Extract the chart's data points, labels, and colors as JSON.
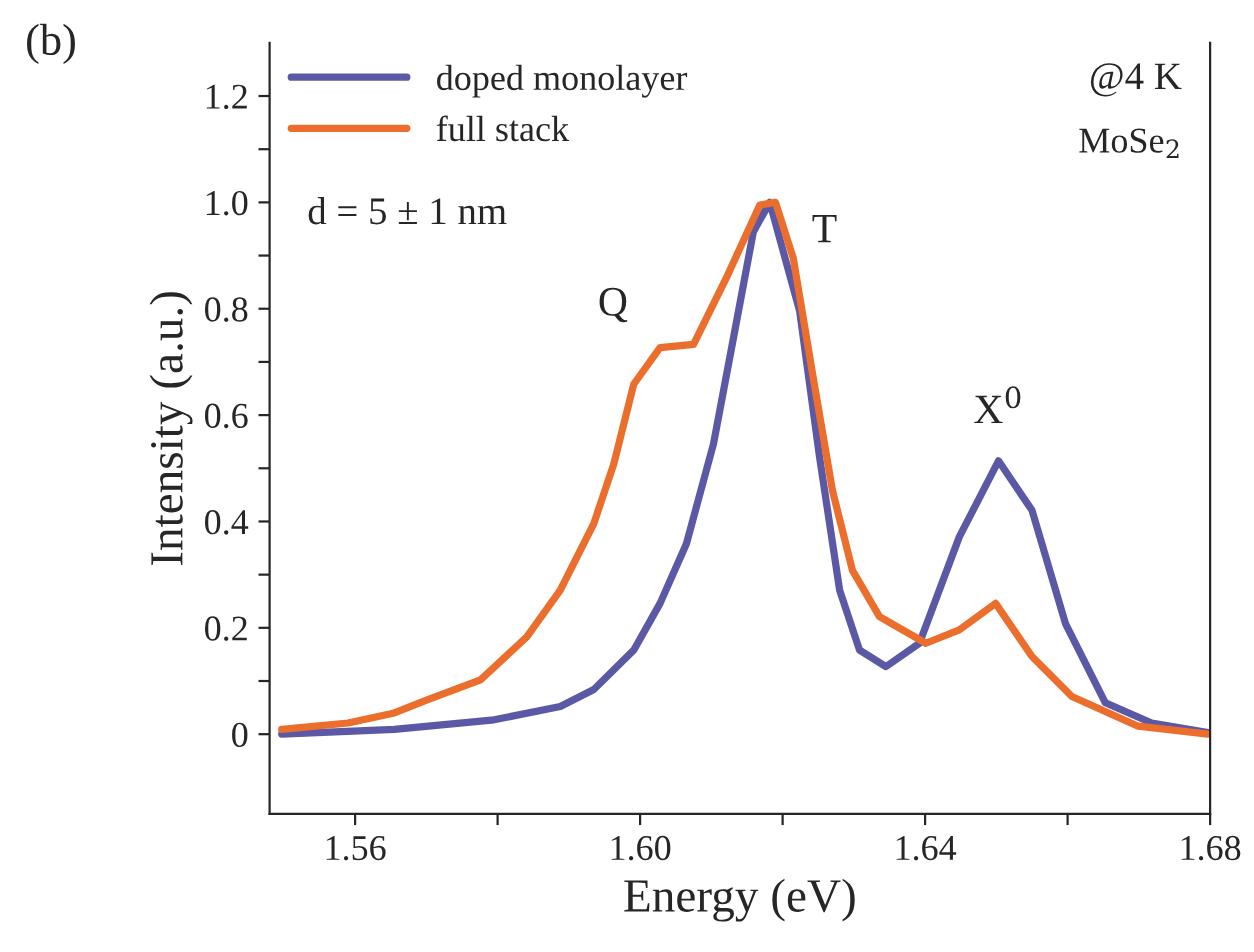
{
  "chart_data": {
    "type": "line",
    "xlabel": "Energy (eV)",
    "ylabel": "Intensity (a.u.)",
    "xlim": [
      1.548,
      1.68
    ],
    "ylim": [
      -0.15,
      1.3
    ],
    "xticks": [
      1.56,
      {
        "value": 1.58,
        "label": null
      },
      {
        "value": 1.6,
        "label": "1.60"
      },
      {
        "value": 1.62,
        "label": null
      },
      1.64,
      {
        "value": 1.66,
        "label": null
      },
      1.68
    ],
    "yticks": [
      0,
      {
        "value": 0.1,
        "label": null
      },
      0.2,
      {
        "value": 0.3,
        "label": null
      },
      0.4,
      {
        "value": 0.5,
        "label": null
      },
      0.6,
      {
        "value": 0.7,
        "label": null
      },
      0.8,
      {
        "value": 0.9,
        "label": null
      },
      {
        "value": 1.0,
        "label": "1.0"
      },
      {
        "value": 1.1,
        "label": null
      },
      1.2
    ],
    "grid": false,
    "legend": "top left",
    "marker": "none",
    "line_style": "solid",
    "series": [
      {
        "name": "doped monolayer",
        "color": "#5b58a6",
        "x": [
          1.5497,
          1.5655,
          1.5795,
          1.5888,
          1.5935,
          1.5991,
          1.6028,
          1.6065,
          1.6103,
          1.6131,
          1.6159,
          1.6182,
          1.6224,
          1.6252,
          1.628,
          1.6308,
          1.6345,
          1.6392,
          1.6448,
          1.6503,
          1.655,
          1.6597,
          1.6653,
          1.6718,
          1.6797
        ],
        "values": [
          0.0,
          0.009,
          0.027,
          0.052,
          0.084,
          0.158,
          0.246,
          0.358,
          0.546,
          0.745,
          0.945,
          1.0,
          0.795,
          0.52,
          0.271,
          0.158,
          0.127,
          0.171,
          0.371,
          0.514,
          0.421,
          0.208,
          0.059,
          0.021,
          0.003
        ]
      },
      {
        "name": "full stack",
        "color": "#ec6e2c",
        "x": [
          1.5497,
          1.559,
          1.5655,
          1.5702,
          1.5776,
          1.5841,
          1.5888,
          1.5935,
          1.5963,
          1.5991,
          1.6028,
          1.6075,
          1.6121,
          1.6168,
          1.619,
          1.6215,
          1.6243,
          1.627,
          1.6298,
          1.6336,
          1.6401,
          1.6448,
          1.6499,
          1.655,
          1.6606,
          1.6699,
          1.6797
        ],
        "values": [
          0.009,
          0.021,
          0.04,
          0.065,
          0.102,
          0.183,
          0.271,
          0.396,
          0.508,
          0.658,
          0.727,
          0.733,
          0.858,
          0.995,
          1.0,
          0.895,
          0.67,
          0.458,
          0.308,
          0.221,
          0.171,
          0.196,
          0.246,
          0.146,
          0.071,
          0.015,
          0.0
        ]
      }
    ],
    "annotations": [
      "(b)",
      "d = 5 ± 1 nm",
      "@4 K",
      "MoSe$_{2}$",
      "Q",
      "T",
      "X$^{0}$"
    ]
  }
}
